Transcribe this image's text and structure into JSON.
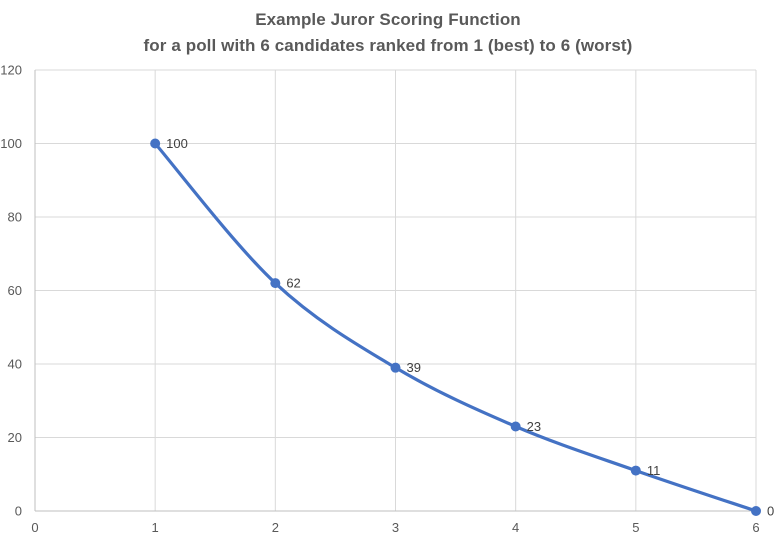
{
  "chart_data": {
    "type": "line",
    "title": "Example Juror Scoring Function",
    "subtitle": "for a poll with 6 candidates ranked from 1 (best) to 6 (worst)",
    "x": [
      1,
      2,
      3,
      4,
      5,
      6
    ],
    "values": [
      100,
      62,
      39,
      23,
      11,
      0
    ],
    "data_labels": [
      "100",
      "62",
      "39",
      "23",
      "11",
      "0"
    ],
    "xlim": [
      0,
      6
    ],
    "ylim": [
      0,
      120
    ],
    "x_ticks": [
      0,
      1,
      2,
      3,
      4,
      5,
      6
    ],
    "y_ticks": [
      0,
      20,
      40,
      60,
      80,
      100,
      120
    ],
    "grid": true,
    "smooth": true,
    "legend": "none",
    "xlabel": "",
    "ylabel": "",
    "colors": {
      "line": "#4472C4",
      "marker": "#4472C4",
      "gridline": "#D9D9D9",
      "axis_line": "#BFBFBF",
      "tick_label": "#595959",
      "data_label": "#404040",
      "title": "#595959",
      "background": "#FFFFFF"
    }
  }
}
